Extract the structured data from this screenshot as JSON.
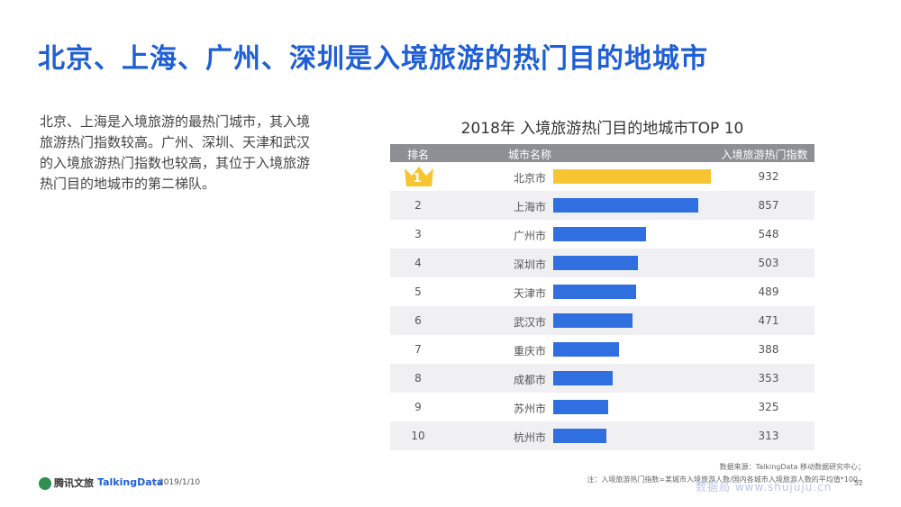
{
  "title": "北京、上海、广州、深圳是入境旅游的热门目的地城市",
  "description": "北京、上海是入境旅游的最热门城市，其入境旅游热门指数较高。广州、深圳、天津和武汉的入境旅游热门指数也较高，其位于入境旅游热门目的地城市的第二梯队。",
  "chart_data": {
    "type": "bar",
    "title": "2018年 入境旅游热门目的地城市TOP 10",
    "columns": [
      "排名",
      "城市名称",
      "入境旅游热门指数"
    ],
    "ranks": [
      "1",
      "2",
      "3",
      "4",
      "5",
      "6",
      "7",
      "8",
      "9",
      "10"
    ],
    "categories": [
      "北京市",
      "上海市",
      "广州市",
      "深圳市",
      "天津市",
      "武汉市",
      "重庆市",
      "成都市",
      "苏州市",
      "杭州市"
    ],
    "values": [
      932,
      857,
      548,
      503,
      489,
      471,
      388,
      353,
      325,
      313
    ],
    "max": 932,
    "colors": {
      "top": "#f7c531",
      "rest": "#2f6fe0"
    }
  },
  "footer": {
    "logo1": "腾讯文旅",
    "logo2": "TalkingData",
    "date": "2019/1/10",
    "source": "数据来源：TalkingData 移动数据研究中心；",
    "note": "注：入境旅游热门指数=某城市入境旅游人数/国内各城市入境旅游人数的平均值*100。",
    "page": "52",
    "watermark": "数据局 www.shujuju.cn"
  }
}
